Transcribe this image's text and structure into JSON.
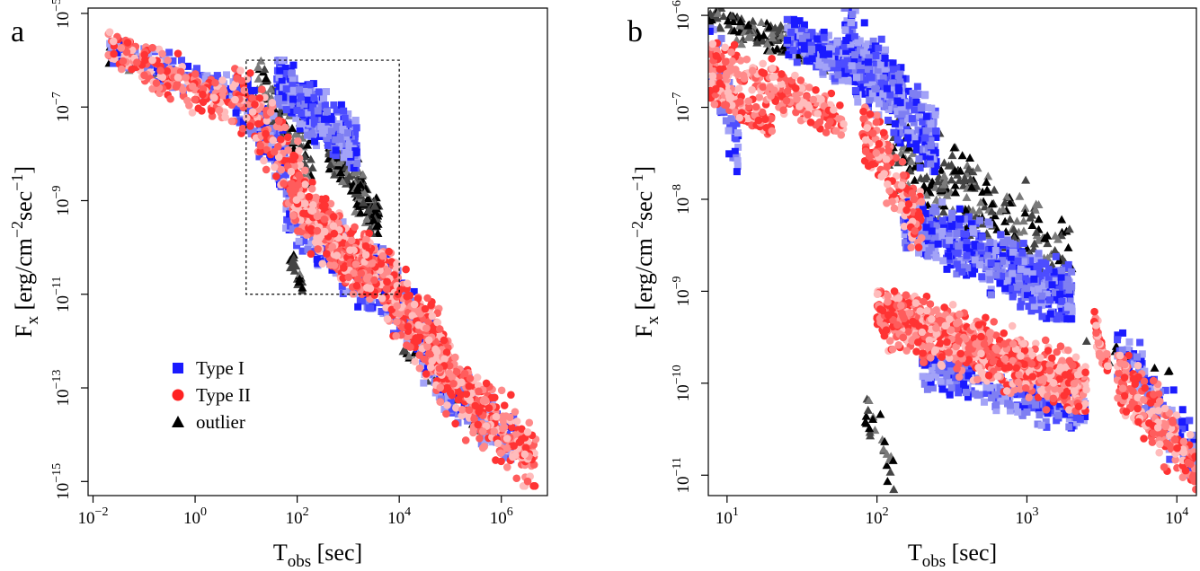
{
  "colors": {
    "type1": [
      "#1a1aff",
      "#4d4dff",
      "#7f7ff2",
      "#a3a3f7"
    ],
    "type2": [
      "#ff3333",
      "#ff5c5c",
      "#ff8a8a",
      "#ffbcbc"
    ],
    "outlier": [
      "#000000",
      "#444444",
      "#7a7a7a"
    ]
  },
  "chart_data": [
    {
      "panel": "a",
      "type": "scatter",
      "xlabel_main": "T",
      "xlabel_sub": "obs",
      "xlabel_unit": " [sec]",
      "ylabel_main": "F",
      "ylabel_sub": "x",
      "ylabel_unit": " [erg/cm",
      "ylabel_exp1": "−2",
      "ylabel_mid": "sec",
      "ylabel_exp2": "−1",
      "ylabel_end": "]",
      "x_scale": "log",
      "y_scale": "log",
      "xlim": [
        0.008,
        8000000
      ],
      "ylim": [
        5e-16,
        1.3e-05
      ],
      "x_ticks": [
        {
          "value": 0.01,
          "base": "10",
          "exp": "−2"
        },
        {
          "value": 1,
          "base": "10",
          "exp": "0"
        },
        {
          "value": 100,
          "base": "10",
          "exp": "2"
        },
        {
          "value": 10000,
          "base": "10",
          "exp": "4"
        },
        {
          "value": 1000000,
          "base": "10",
          "exp": "6"
        }
      ],
      "y_ticks": [
        {
          "value": 1e-05,
          "base": "10",
          "exp": "−5"
        },
        {
          "value": 1e-07,
          "base": "10",
          "exp": "−7"
        },
        {
          "value": 1e-09,
          "base": "10",
          "exp": "−9"
        },
        {
          "value": 1e-11,
          "base": "10",
          "exp": "−11"
        },
        {
          "value": 1e-13,
          "base": "10",
          "exp": "−13"
        },
        {
          "value": 1e-15,
          "base": "10",
          "exp": "−15"
        }
      ],
      "zoom_box": {
        "x": [
          10,
          10000
        ],
        "y": [
          1e-11,
          1e-06
        ]
      },
      "legend": {
        "placement": "lower-left",
        "entries": [
          {
            "label": "Type I",
            "marker": "square",
            "color": "#1a1aff"
          },
          {
            "label": "Type II",
            "marker": "circle",
            "color": "#ff2222"
          },
          {
            "label": "outlier",
            "marker": "triangle",
            "color": "#000000"
          }
        ]
      },
      "series": [
        {
          "name": "Type I",
          "marker": "square",
          "clusters": [
            {
              "x": [
                0.02,
                6
              ],
              "y": [
                1e-07,
                3e-06
              ],
              "n": 120
            },
            {
              "x": [
                6,
                60
              ],
              "y": [
                2e-09,
                6e-07
              ],
              "n": 200
            },
            {
              "x": [
                40,
                1500
              ],
              "y": [
                5e-09,
                1e-06
              ],
              "n": 450
            },
            {
              "x": [
                60,
                3000
              ],
              "y": [
                5e-12,
                2e-09
              ],
              "n": 250
            },
            {
              "x": [
                3000,
                60000
              ],
              "y": [
                2e-13,
                1e-10
              ],
              "n": 250
            },
            {
              "x": [
                30000,
                2000000
              ],
              "y": [
                3e-15,
                5e-13
              ],
              "n": 180
            }
          ]
        },
        {
          "name": "Type II",
          "marker": "circle",
          "clusters": [
            {
              "x": [
                0.02,
                6
              ],
              "y": [
                5e-08,
                4e-06
              ],
              "n": 200
            },
            {
              "x": [
                6,
                150
              ],
              "y": [
                5e-10,
                1e-06
              ],
              "n": 150
            },
            {
              "x": [
                80,
                2500
              ],
              "y": [
                1e-11,
                3e-09
              ],
              "n": 600
            },
            {
              "x": [
                2000,
                100000
              ],
              "y": [
                1e-13,
                2e-10
              ],
              "n": 350
            },
            {
              "x": [
                50000,
                5000000
              ],
              "y": [
                8e-16,
                1e-12
              ],
              "n": 300
            }
          ]
        },
        {
          "name": "outlier",
          "marker": "triangle",
          "clusters": [
            {
              "x": [
                0.02,
                5
              ],
              "y": [
                1e-07,
                2e-06
              ],
              "n": 25
            },
            {
              "x": [
                15,
                200
              ],
              "y": [
                2e-09,
                1e-06
              ],
              "n": 80
            },
            {
              "x": [
                400,
                4000
              ],
              "y": [
                2e-10,
                3e-08
              ],
              "n": 180
            },
            {
              "x": [
                70,
                130
              ],
              "y": [
                1e-11,
                1e-10
              ],
              "n": 25
            },
            {
              "x": [
                10000,
                500000
              ],
              "y": [
                1e-14,
                3e-12
              ],
              "n": 50
            }
          ]
        }
      ]
    },
    {
      "panel": "b",
      "type": "scatter",
      "xlabel_main": "T",
      "xlabel_sub": "obs",
      "xlabel_unit": " [sec]",
      "ylabel_main": "F",
      "ylabel_sub": "x",
      "ylabel_unit": " [erg/cm",
      "ylabel_exp1": "−2",
      "ylabel_mid": "sec",
      "ylabel_exp2": "−1",
      "ylabel_end": "]",
      "x_scale": "log",
      "y_scale": "log",
      "xlim": [
        7.5,
        13500
      ],
      "ylim": [
        6e-12,
        1.2e-06
      ],
      "x_ticks": [
        {
          "value": 10,
          "base": "10",
          "exp": "1"
        },
        {
          "value": 100,
          "base": "10",
          "exp": "2"
        },
        {
          "value": 1000,
          "base": "10",
          "exp": "3"
        },
        {
          "value": 10000,
          "base": "10",
          "exp": "4"
        }
      ],
      "y_ticks": [
        {
          "value": 1e-06,
          "base": "10",
          "exp": "−6"
        },
        {
          "value": 1e-07,
          "base": "10",
          "exp": "−7"
        },
        {
          "value": 1e-08,
          "base": "10",
          "exp": "−8"
        },
        {
          "value": 1e-09,
          "base": "10",
          "exp": "−9"
        },
        {
          "value": 1e-10,
          "base": "10",
          "exp": "−10"
        },
        {
          "value": 1e-11,
          "base": "10",
          "exp": "−11"
        }
      ],
      "series": [
        {
          "name": "Type I",
          "marker": "square",
          "clusters": [
            {
              "x": [
                7.5,
                12
              ],
              "y": [
                2e-08,
                1e-06
              ],
              "n": 60
            },
            {
              "x": [
                25,
                150
              ],
              "y": [
                1e-07,
                9e-07
              ],
              "n": 400
            },
            {
              "x": [
                60,
                250
              ],
              "y": [
                2e-08,
                1.2e-06
              ],
              "n": 300
            },
            {
              "x": [
                150,
                2000
              ],
              "y": [
                5e-10,
                1e-08
              ],
              "n": 700
            },
            {
              "x": [
                200,
                2500
              ],
              "y": [
                3e-11,
                2e-10
              ],
              "n": 250
            },
            {
              "x": [
                4000,
                13500
              ],
              "y": [
                1e-11,
                4e-10
              ],
              "n": 120
            }
          ]
        },
        {
          "name": "Type II",
          "marker": "circle",
          "clusters": [
            {
              "x": [
                7.5,
                20
              ],
              "y": [
                5e-08,
                2e-07
              ],
              "n": 150
            },
            {
              "x": [
                7.5,
                60
              ],
              "y": [
                5e-08,
                5e-07
              ],
              "n": 250
            },
            {
              "x": [
                80,
                200
              ],
              "y": [
                3e-09,
                1e-07
              ],
              "n": 150
            },
            {
              "x": [
                100,
                2500
              ],
              "y": [
                5e-11,
                1e-09
              ],
              "n": 900
            },
            {
              "x": [
                2800,
                3500
              ],
              "y": [
                1e-10,
                6e-10
              ],
              "n": 50
            },
            {
              "x": [
                4000,
                13500
              ],
              "y": [
                7e-12,
                2e-10
              ],
              "n": 200
            }
          ]
        },
        {
          "name": "outlier",
          "marker": "triangle",
          "clusters": [
            {
              "x": [
                7.5,
                60
              ],
              "y": [
                2.5e-07,
                1.2e-06
              ],
              "n": 150
            },
            {
              "x": [
                120,
                2000
              ],
              "y": [
                1e-09,
                7e-08
              ],
              "n": 250
            },
            {
              "x": [
                80,
                130
              ],
              "y": [
                7e-12,
                1e-10
              ],
              "n": 25
            },
            {
              "x": [
                2000,
                13500
              ],
              "y": [
                1e-10,
                3e-10
              ],
              "n": 10
            }
          ]
        }
      ]
    }
  ]
}
